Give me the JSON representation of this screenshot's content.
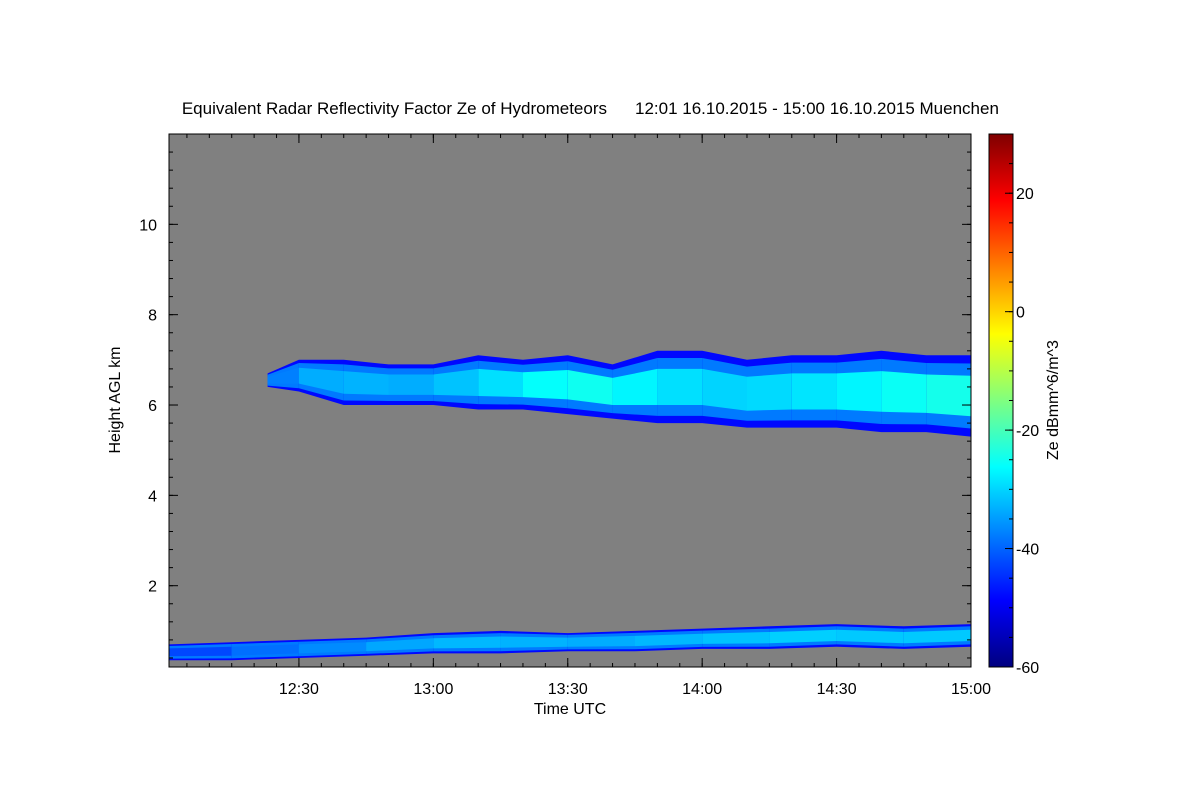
{
  "chart_data": {
    "type": "heatmap",
    "title": "Equivalent Radar Reflectivity Factor Ze of Hydrometeors",
    "period": "12:01 16.10.2015 - 15:00 16.10.2015 Muenchen",
    "xlabel": "Time UTC",
    "ylabel": "Height AGL km",
    "xlim": [
      "12:01",
      "15:00"
    ],
    "ylim": [
      0.2,
      12.0
    ],
    "x_ticks": [
      "12:30",
      "13:00",
      "13:30",
      "14:00",
      "14:30",
      "15:00"
    ],
    "y_ticks": [
      2,
      4,
      6,
      8,
      10
    ],
    "colorbar": {
      "label": "Ze dBmm^6/m^3",
      "range": [
        -60,
        30
      ],
      "ticks": [
        20,
        0,
        -20,
        -40,
        -60
      ],
      "colormap": "jet"
    },
    "background_color": "#808080",
    "layers": [
      {
        "layer": "upper cloud",
        "time": [
          "12:23",
          "12:30",
          "12:40",
          "12:50",
          "13:00",
          "13:10",
          "13:20",
          "13:30",
          "13:40",
          "13:50",
          "14:00",
          "14:10",
          "14:20",
          "14:30",
          "14:40",
          "14:50",
          "15:00"
        ],
        "top_km": [
          6.7,
          7.0,
          7.0,
          6.9,
          6.9,
          7.1,
          7.0,
          7.1,
          6.9,
          7.2,
          7.2,
          7.0,
          7.1,
          7.1,
          7.2,
          7.1,
          7.1
        ],
        "base_km": [
          6.4,
          6.3,
          6.0,
          6.0,
          6.0,
          5.9,
          5.9,
          5.8,
          5.7,
          5.6,
          5.6,
          5.5,
          5.5,
          5.5,
          5.4,
          5.4,
          5.3
        ],
        "peak_ze_dbz": [
          -40,
          -35,
          -32,
          -34,
          -33,
          -30,
          -28,
          -24,
          -26,
          -28,
          -30,
          -30,
          -29,
          -28,
          -26,
          -25,
          -24
        ]
      },
      {
        "layer": "boundary layer",
        "time": [
          "12:01",
          "12:15",
          "12:30",
          "12:45",
          "13:00",
          "13:15",
          "13:30",
          "13:45",
          "14:00",
          "14:15",
          "14:30",
          "14:45",
          "15:00"
        ],
        "top_km": [
          0.7,
          0.75,
          0.8,
          0.85,
          0.95,
          1.0,
          0.95,
          1.0,
          1.05,
          1.1,
          1.15,
          1.1,
          1.15
        ],
        "base_km": [
          0.35,
          0.35,
          0.4,
          0.45,
          0.5,
          0.5,
          0.55,
          0.55,
          0.6,
          0.6,
          0.65,
          0.6,
          0.65
        ],
        "peak_ze_dbz": [
          -45,
          -40,
          -38,
          -35,
          -33,
          -32,
          -34,
          -33,
          -32,
          -31,
          -30,
          -32,
          -30
        ]
      }
    ]
  }
}
